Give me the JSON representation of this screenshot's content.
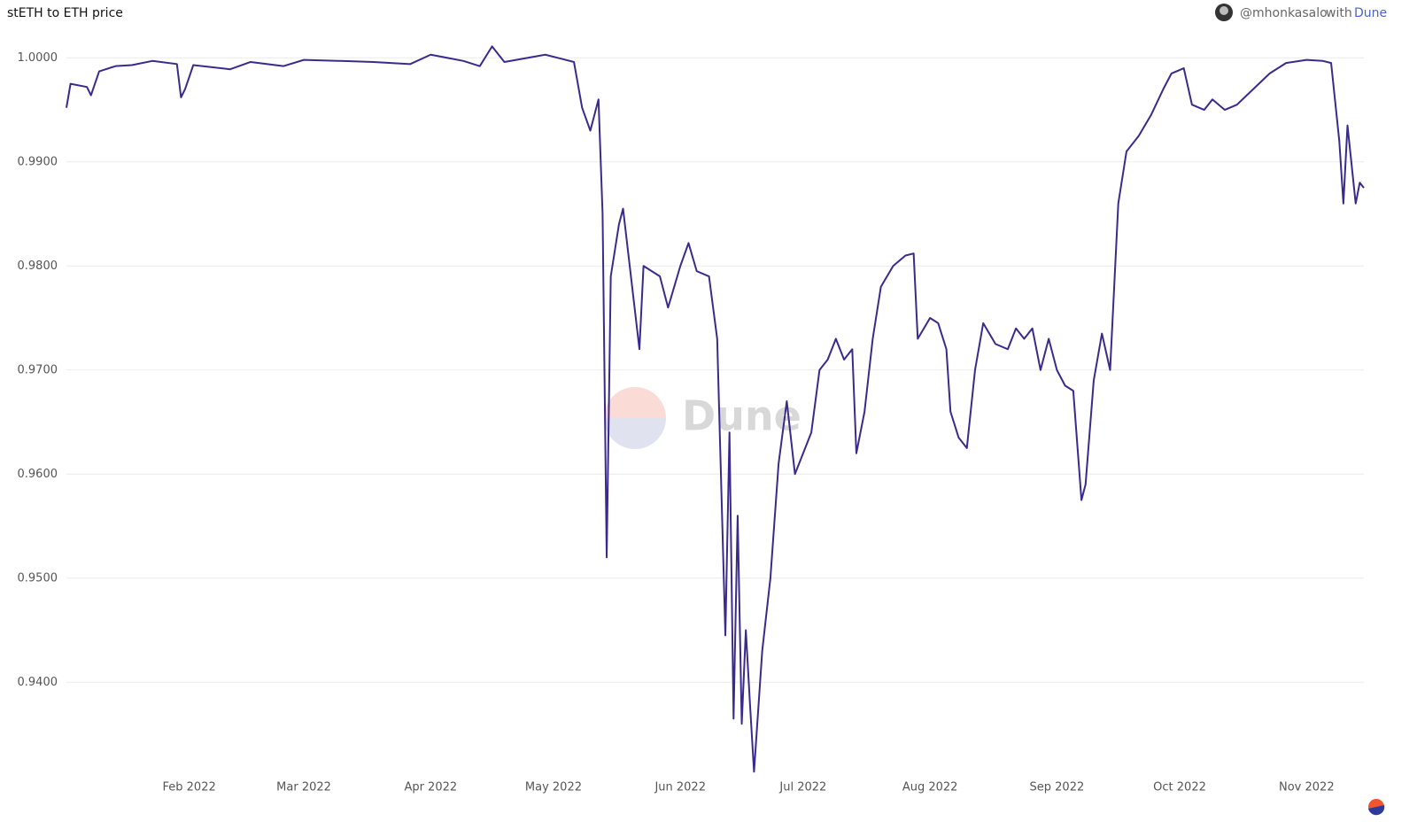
{
  "chart_data": {
    "type": "line",
    "title": "stETH to ETH price",
    "attribution": {
      "author": "@mhonkasalo",
      "with": "with",
      "brand": "Dune"
    },
    "watermark": "Dune",
    "grid": true,
    "xlim": [
      "2022-01-02",
      "2022-11-15"
    ],
    "xticks": [
      {
        "value": "2022-02-01",
        "label": "Feb 2022"
      },
      {
        "value": "2022-03-01",
        "label": "Mar 2022"
      },
      {
        "value": "2022-04-01",
        "label": "Apr 2022"
      },
      {
        "value": "2022-05-01",
        "label": "May 2022"
      },
      {
        "value": "2022-06-01",
        "label": "Jun 2022"
      },
      {
        "value": "2022-07-01",
        "label": "Jul 2022"
      },
      {
        "value": "2022-08-01",
        "label": "Aug 2022"
      },
      {
        "value": "2022-09-01",
        "label": "Sep 2022"
      },
      {
        "value": "2022-10-01",
        "label": "Oct 2022"
      },
      {
        "value": "2022-11-01",
        "label": "Nov 2022"
      }
    ],
    "ylim": [
      0.931,
      1.0013
    ],
    "yticks": [
      {
        "value": 0.94,
        "label": "0.9400"
      },
      {
        "value": 0.95,
        "label": "0.9500"
      },
      {
        "value": 0.96,
        "label": "0.9600"
      },
      {
        "value": 0.97,
        "label": "0.9700"
      },
      {
        "value": 0.98,
        "label": "0.9800"
      },
      {
        "value": 0.99,
        "label": "0.9900"
      },
      {
        "value": 1,
        "label": "1.0000"
      }
    ],
    "x": [
      "2022-01-02",
      "2022-01-03",
      "2022-01-07",
      "2022-01-08",
      "2022-01-10",
      "2022-01-14",
      "2022-01-18",
      "2022-01-23",
      "2022-01-29",
      "2022-01-30",
      "2022-01-31",
      "2022-02-02",
      "2022-02-11",
      "2022-02-16",
      "2022-02-24",
      "2022-03-01",
      "2022-03-10",
      "2022-03-18",
      "2022-03-27",
      "2022-04-01",
      "2022-04-09",
      "2022-04-13",
      "2022-04-16",
      "2022-04-19",
      "2022-04-29",
      "2022-05-06",
      "2022-05-08",
      "2022-05-10",
      "2022-05-12",
      "2022-05-13",
      "2022-05-14",
      "2022-05-15",
      "2022-05-17",
      "2022-05-18",
      "2022-05-22",
      "2022-05-23",
      "2022-05-27",
      "2022-05-29",
      "2022-06-01",
      "2022-06-03",
      "2022-06-05",
      "2022-06-08",
      "2022-06-10",
      "2022-06-12",
      "2022-06-13",
      "2022-06-14",
      "2022-06-15",
      "2022-06-16",
      "2022-06-17",
      "2022-06-18",
      "2022-06-19",
      "2022-06-21",
      "2022-06-23",
      "2022-06-25",
      "2022-06-27",
      "2022-06-29",
      "2022-07-01",
      "2022-07-03",
      "2022-07-05",
      "2022-07-07",
      "2022-07-09",
      "2022-07-11",
      "2022-07-13",
      "2022-07-14",
      "2022-07-16",
      "2022-07-18",
      "2022-07-20",
      "2022-07-23",
      "2022-07-26",
      "2022-07-28",
      "2022-07-29",
      "2022-08-01",
      "2022-08-03",
      "2022-08-05",
      "2022-08-06",
      "2022-08-08",
      "2022-08-10",
      "2022-08-12",
      "2022-08-14",
      "2022-08-17",
      "2022-08-20",
      "2022-08-22",
      "2022-08-24",
      "2022-08-26",
      "2022-08-28",
      "2022-08-30",
      "2022-09-01",
      "2022-09-03",
      "2022-09-05",
      "2022-09-07",
      "2022-09-08",
      "2022-09-10",
      "2022-09-12",
      "2022-09-14",
      "2022-09-16",
      "2022-09-18",
      "2022-09-21",
      "2022-09-24",
      "2022-09-27",
      "2022-09-29",
      "2022-10-02",
      "2022-10-04",
      "2022-10-07",
      "2022-10-09",
      "2022-10-12",
      "2022-10-15",
      "2022-10-19",
      "2022-10-23",
      "2022-10-27",
      "2022-11-01",
      "2022-11-05",
      "2022-11-07",
      "2022-11-09",
      "2022-11-10",
      "2022-11-11",
      "2022-11-13",
      "2022-11-14",
      "2022-11-15"
    ],
    "series": [
      {
        "color": "#3b2a8c",
        "values": [
          0.9952,
          0.9975,
          0.9972,
          0.9964,
          0.9987,
          0.9992,
          0.9993,
          0.9997,
          0.9994,
          0.9962,
          0.997,
          0.9993,
          0.9989,
          0.9996,
          0.9992,
          0.9998,
          0.9997,
          0.9996,
          0.9994,
          1.0003,
          0.9997,
          0.9992,
          1.0011,
          0.9996,
          1.0003,
          0.9996,
          0.9952,
          0.993,
          0.996,
          0.985,
          0.952,
          0.979,
          0.984,
          0.9855,
          0.972,
          0.98,
          0.979,
          0.976,
          0.98,
          0.9822,
          0.9795,
          0.979,
          0.973,
          0.9445,
          0.964,
          0.9365,
          0.956,
          0.936,
          0.945,
          0.938,
          0.9314,
          0.943,
          0.95,
          0.961,
          0.967,
          0.96,
          0.962,
          0.964,
          0.97,
          0.971,
          0.973,
          0.971,
          0.972,
          0.962,
          0.966,
          0.973,
          0.978,
          0.98,
          0.981,
          0.9812,
          0.973,
          0.975,
          0.9745,
          0.972,
          0.966,
          0.9635,
          0.9625,
          0.97,
          0.9745,
          0.9725,
          0.972,
          0.974,
          0.973,
          0.974,
          0.97,
          0.973,
          0.97,
          0.9685,
          0.968,
          0.9575,
          0.959,
          0.969,
          0.9735,
          0.97,
          0.986,
          0.991,
          0.9925,
          0.9945,
          0.997,
          0.9985,
          0.999,
          0.9955,
          0.995,
          0.996,
          0.995,
          0.9955,
          0.997,
          0.9985,
          0.9995,
          0.9998,
          0.9997,
          0.9995,
          0.992,
          0.986,
          0.9935,
          0.986,
          0.988,
          0.9875
        ]
      }
    ]
  }
}
